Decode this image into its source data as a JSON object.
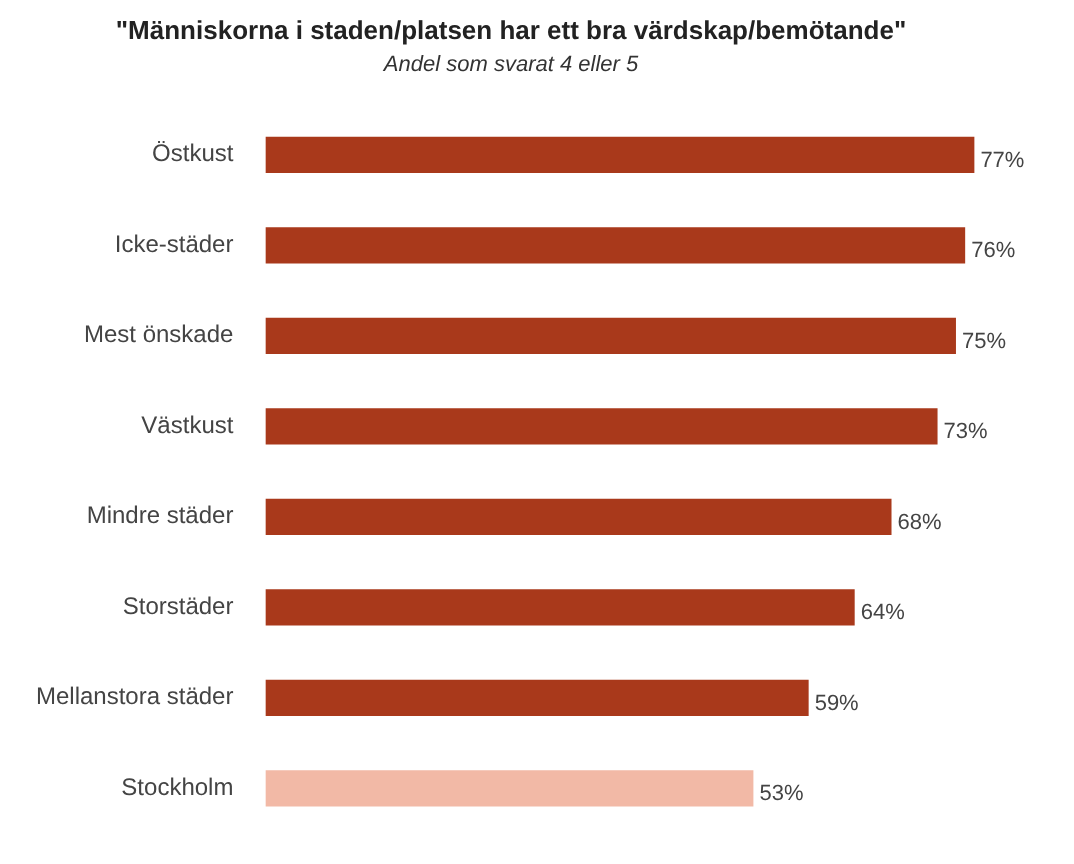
{
  "chart_data": {
    "type": "bar",
    "orientation": "horizontal",
    "title": "\"Människorna i staden/platsen har ett bra värdskap/bemötande\"",
    "subtitle": "Andel som svarat 4 eller 5",
    "categories": [
      "Östkust",
      "Icke-städer",
      "Mest önskade",
      "Västkust",
      "Mindre städer",
      "Storstäder",
      "Mellanstora städer",
      "Stockholm"
    ],
    "values": [
      77,
      76,
      75,
      73,
      68,
      64,
      59,
      53
    ],
    "colors": [
      "#a9391b",
      "#a9391b",
      "#a9391b",
      "#a9391b",
      "#a9391b",
      "#a9391b",
      "#a9391b",
      "#f2b9a6"
    ],
    "value_labels": [
      "77%",
      "76%",
      "75%",
      "73%",
      "68%",
      "64%",
      "59%",
      "53%"
    ],
    "tick_labels": "y",
    "legend": false
  }
}
